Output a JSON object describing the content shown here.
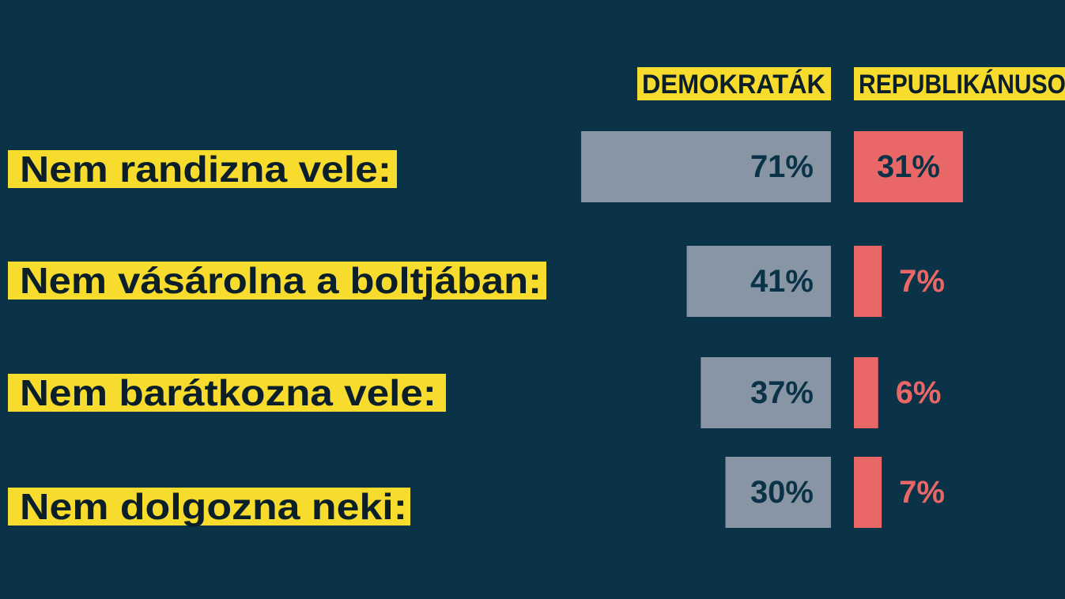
{
  "chart_data": {
    "type": "bar",
    "categories": [
      "Nem randizna vele:",
      "Nem vásárolna a boltjában:",
      "Nem barátkozna vele:",
      "Nem dolgozna neki:"
    ],
    "series": [
      {
        "name": "DEMOKRATÁK",
        "values": [
          71,
          41,
          37,
          30
        ],
        "labels": [
          "71%",
          "41%",
          "37%",
          "30%"
        ],
        "color": "#8795a4"
      },
      {
        "name": "REPUBLIKÁNUSO",
        "values": [
          31,
          7,
          6,
          7
        ],
        "labels": [
          "31%",
          "7%",
          "6%",
          "7%"
        ],
        "color": "#ea6767"
      }
    ],
    "unit": "%",
    "xlim": [
      0,
      100
    ]
  },
  "colors": {
    "background": "#0b3347",
    "highlight": "#f7dc2e",
    "label_text": "#0b1f2a",
    "democrat_bar": "#8795a4",
    "democrat_value_text": "#0b3347",
    "republican_bar": "#ea6767",
    "republican_value_text_inside": "#0b3347",
    "republican_value_text_outside": "#ea6767"
  }
}
